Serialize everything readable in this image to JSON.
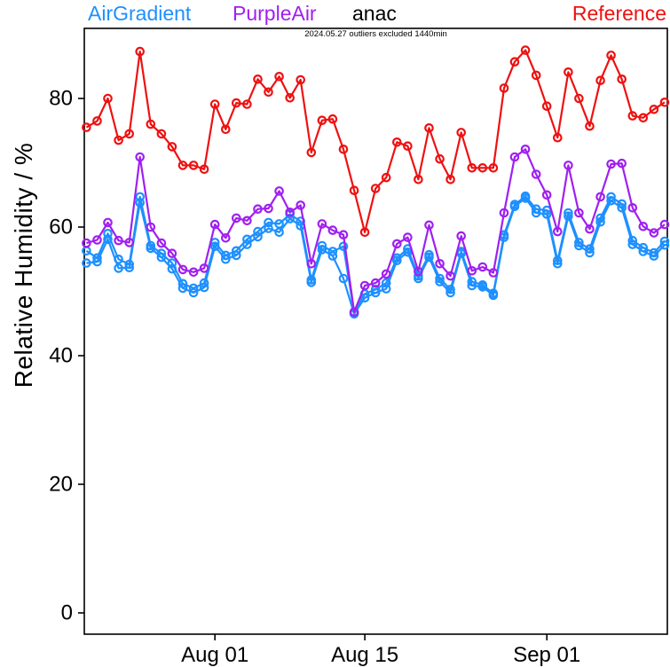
{
  "legend": {
    "items": [
      {
        "label": "AirGradient",
        "color": "#1E90FF"
      },
      {
        "label": "PurpleAir",
        "color": "#A020F0"
      },
      {
        "label": "anac",
        "color": "#000000"
      },
      {
        "label": "Reference",
        "color": "#EE1111"
      }
    ]
  },
  "subtitle": "2024.05.27 outliers excluded 1440min",
  "chart_data": {
    "type": "line",
    "title": "anac",
    "annotation": "2024.05.27 outliers excluded 1440min",
    "xlabel": "",
    "ylabel": "Relative Humidity / %",
    "ylim": [
      -3.5,
      91
    ],
    "grid": false,
    "legend_position": "top",
    "x_dates": {
      "start": "Jul 20",
      "end": "Sep 12",
      "step": "1 day",
      "count": 55
    },
    "x_ticks": [
      {
        "label": "Aug 01",
        "index": 12
      },
      {
        "label": "Aug 15",
        "index": 26
      },
      {
        "label": "Sep 01",
        "index": 43
      }
    ],
    "y_ticks": [
      0,
      20,
      40,
      60,
      80
    ],
    "series": [
      {
        "name": "AirGradient-1",
        "legend": "AirGradient",
        "color": "#1E90FF",
        "values": [
          56.3,
          55.2,
          59,
          55,
          54.2,
          64.7,
          57.1,
          55.9,
          54.4,
          51.2,
          50.5,
          51.3,
          57.6,
          55.6,
          56.3,
          58.1,
          59.3,
          60.7,
          60.5,
          62,
          60.9,
          51.8,
          57.1,
          56.2,
          57,
          46.7,
          49.6,
          50.3,
          51.3,
          55.2,
          56.6,
          52.4,
          55.7,
          52,
          50.3,
          56.2,
          51.5,
          51,
          49.7,
          58.8,
          63.5,
          64.8,
          62.8,
          62.6,
          54.8,
          62.2,
          57.6,
          56.6,
          61.4,
          64.7,
          63.6,
          57.9,
          56.8,
          56,
          57.8
        ]
      },
      {
        "name": "AirGradient-2",
        "legend": "AirGradient",
        "color": "#1E90FF",
        "values": [
          54.4,
          54.6,
          58.1,
          53.6,
          53.7,
          63.8,
          56.7,
          55.3,
          53.5,
          50.5,
          49.8,
          50.6,
          57,
          55,
          55.6,
          57.3,
          58.5,
          59.8,
          59.2,
          61.3,
          60.2,
          51.4,
          56.5,
          55.5,
          52,
          46.5,
          49,
          49.8,
          50.4,
          54.8,
          56.1,
          52,
          55.3,
          51.5,
          49.8,
          55.9,
          50.9,
          50.7,
          49.4,
          58.4,
          63.2,
          64.5,
          62.2,
          62,
          54.3,
          61.7,
          57.1,
          56,
          60.8,
          64.1,
          63,
          57.3,
          56.2,
          55.5,
          57.2
        ]
      },
      {
        "name": "PurpleAir",
        "legend": "PurpleAir",
        "color": "#A020F0",
        "values": [
          57.5,
          58,
          60.7,
          57.9,
          57.6,
          70.9,
          60,
          57.5,
          55.9,
          53.4,
          53,
          53.6,
          60.4,
          58.3,
          61.4,
          61,
          62.8,
          62.9,
          65.6,
          62.3,
          63.4,
          54.3,
          60.5,
          59.5,
          58.8,
          46.8,
          50.9,
          51.3,
          52.7,
          57.4,
          58.4,
          53.1,
          60.3,
          54.3,
          52.4,
          58.6,
          53.2,
          53.8,
          52.9,
          62.2,
          70.9,
          72.1,
          68.2,
          65,
          59.3,
          69.6,
          62.2,
          59.7,
          64.7,
          69.8,
          69.9,
          63,
          60.1,
          59.1,
          60.4
        ]
      },
      {
        "name": "Reference",
        "legend": "Reference",
        "color": "#EE1111",
        "values": [
          75.5,
          76.5,
          80,
          73.5,
          74.5,
          87.3,
          76,
          74.5,
          72.5,
          69.6,
          69.6,
          69,
          79.1,
          75.2,
          79.3,
          79.1,
          83,
          81,
          83.4,
          80.1,
          82.9,
          71.6,
          76.6,
          76.8,
          72.1,
          65.7,
          59.2,
          66,
          67.7,
          73.2,
          72.6,
          67.4,
          75.4,
          70.6,
          67.4,
          74.7,
          69.2,
          69.2,
          69.2,
          81.6,
          85.7,
          87.5,
          83.6,
          78.8,
          73.9,
          84.1,
          80,
          75.7,
          82.8,
          86.7,
          83,
          77.3,
          77,
          78.3,
          79.4
        ]
      }
    ]
  }
}
